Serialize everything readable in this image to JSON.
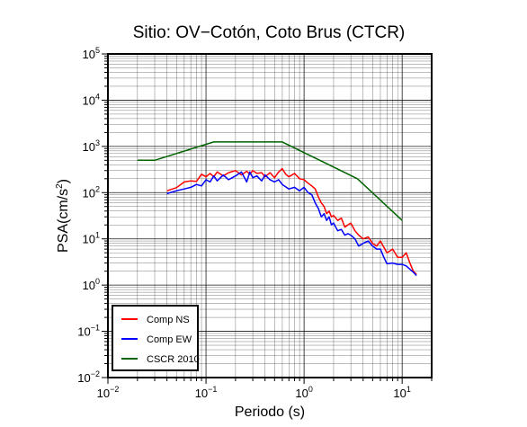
{
  "chart_data": {
    "type": "line",
    "title": "Sitio: OV−Cotón, Coto Brus (CTCR)",
    "xlabel": "Periodo (s)",
    "ylabel_main": "PSA(cm/s",
    "ylabel_sup": "2",
    "ylabel_end": ")",
    "xscale": "log",
    "yscale": "log",
    "xlim": [
      0.01,
      20
    ],
    "ylim": [
      0.01,
      100000
    ],
    "grid": true,
    "legend_position": "bottom-left",
    "x_ticks": [
      {
        "value": 0.01,
        "base": "10",
        "exp": "−2"
      },
      {
        "value": 0.1,
        "base": "10",
        "exp": "−1"
      },
      {
        "value": 1,
        "base": "10",
        "exp": "0"
      },
      {
        "value": 10,
        "base": "10",
        "exp": "1"
      }
    ],
    "y_ticks": [
      {
        "value": 0.01,
        "base": "10",
        "exp": "−2"
      },
      {
        "value": 0.1,
        "base": "10",
        "exp": "−1"
      },
      {
        "value": 1,
        "base": "10",
        "exp": "0"
      },
      {
        "value": 10,
        "base": "10",
        "exp": "1"
      },
      {
        "value": 100,
        "base": "10",
        "exp": "2"
      },
      {
        "value": 1000,
        "base": "10",
        "exp": "3"
      },
      {
        "value": 10000,
        "base": "10",
        "exp": "4"
      },
      {
        "value": 100000,
        "base": "10",
        "exp": "5"
      }
    ],
    "series": [
      {
        "name": "Comp NS",
        "color": "#ff0000",
        "points": [
          [
            0.04,
            110
          ],
          [
            0.05,
            128
          ],
          [
            0.06,
            170
          ],
          [
            0.07,
            180
          ],
          [
            0.08,
            175
          ],
          [
            0.09,
            250
          ],
          [
            0.1,
            220
          ],
          [
            0.11,
            260
          ],
          [
            0.12,
            220
          ],
          [
            0.13,
            280
          ],
          [
            0.15,
            230
          ],
          [
            0.17,
            270
          ],
          [
            0.2,
            300
          ],
          [
            0.23,
            240
          ],
          [
            0.26,
            290
          ],
          [
            0.28,
            250
          ],
          [
            0.3,
            300
          ],
          [
            0.33,
            260
          ],
          [
            0.37,
            270
          ],
          [
            0.4,
            220
          ],
          [
            0.45,
            270
          ],
          [
            0.5,
            210
          ],
          [
            0.55,
            280
          ],
          [
            0.6,
            330
          ],
          [
            0.65,
            250
          ],
          [
            0.7,
            220
          ],
          [
            0.8,
            260
          ],
          [
            0.9,
            200
          ],
          [
            1.0,
            190
          ],
          [
            1.1,
            160
          ],
          [
            1.2,
            140
          ],
          [
            1.3,
            120
          ],
          [
            1.4,
            80
          ],
          [
            1.5,
            60
          ],
          [
            1.6,
            50
          ],
          [
            1.7,
            35
          ],
          [
            1.8,
            40
          ],
          [
            1.9,
            30
          ],
          [
            2.0,
            32
          ],
          [
            2.2,
            25
          ],
          [
            2.4,
            28
          ],
          [
            2.6,
            18
          ],
          [
            2.8,
            20
          ],
          [
            3.0,
            22
          ],
          [
            3.3,
            15
          ],
          [
            3.6,
            12
          ],
          [
            4.0,
            10
          ],
          [
            4.5,
            11
          ],
          [
            5.0,
            8
          ],
          [
            5.5,
            7
          ],
          [
            6.0,
            9
          ],
          [
            7.0,
            5
          ],
          [
            8.0,
            6
          ],
          [
            9.0,
            4
          ],
          [
            10.0,
            4
          ],
          [
            11.0,
            5
          ],
          [
            12.0,
            3
          ],
          [
            13.0,
            2
          ],
          [
            14.0,
            1.7
          ]
        ]
      },
      {
        "name": "Comp EW",
        "color": "#0000ff",
        "points": [
          [
            0.04,
            95
          ],
          [
            0.05,
            110
          ],
          [
            0.06,
            120
          ],
          [
            0.07,
            130
          ],
          [
            0.08,
            150
          ],
          [
            0.09,
            140
          ],
          [
            0.1,
            190
          ],
          [
            0.11,
            170
          ],
          [
            0.12,
            230
          ],
          [
            0.13,
            180
          ],
          [
            0.15,
            240
          ],
          [
            0.17,
            190
          ],
          [
            0.2,
            230
          ],
          [
            0.23,
            280
          ],
          [
            0.26,
            170
          ],
          [
            0.28,
            280
          ],
          [
            0.3,
            210
          ],
          [
            0.33,
            230
          ],
          [
            0.37,
            180
          ],
          [
            0.4,
            240
          ],
          [
            0.45,
            190
          ],
          [
            0.5,
            170
          ],
          [
            0.55,
            190
          ],
          [
            0.6,
            150
          ],
          [
            0.7,
            120
          ],
          [
            0.8,
            130
          ],
          [
            0.9,
            110
          ],
          [
            1.0,
            130
          ],
          [
            1.1,
            100
          ],
          [
            1.2,
            90
          ],
          [
            1.3,
            60
          ],
          [
            1.4,
            45
          ],
          [
            1.5,
            30
          ],
          [
            1.6,
            35
          ],
          [
            1.7,
            25
          ],
          [
            1.8,
            30
          ],
          [
            1.9,
            20
          ],
          [
            2.0,
            22
          ],
          [
            2.2,
            15
          ],
          [
            2.4,
            16
          ],
          [
            2.6,
            12
          ],
          [
            2.8,
            13
          ],
          [
            3.0,
            12
          ],
          [
            3.3,
            10
          ],
          [
            3.6,
            7
          ],
          [
            4.0,
            8
          ],
          [
            4.5,
            9
          ],
          [
            5.0,
            7
          ],
          [
            5.5,
            6
          ],
          [
            6.0,
            6
          ],
          [
            6.5,
            4
          ],
          [
            7.0,
            2.9
          ],
          [
            8.0,
            3
          ],
          [
            9.0,
            2.8
          ],
          [
            10.0,
            2.8
          ],
          [
            11.0,
            2.6
          ],
          [
            12.0,
            2.2
          ],
          [
            13.0,
            1.9
          ],
          [
            14.0,
            1.6
          ]
        ]
      },
      {
        "name": "CSCR 2010",
        "color": "#006400",
        "points": [
          [
            0.02,
            500
          ],
          [
            0.03,
            500
          ],
          [
            0.12,
            1250
          ],
          [
            0.6,
            1250
          ],
          [
            3.5,
            200
          ],
          [
            10.0,
            25
          ]
        ]
      }
    ]
  }
}
